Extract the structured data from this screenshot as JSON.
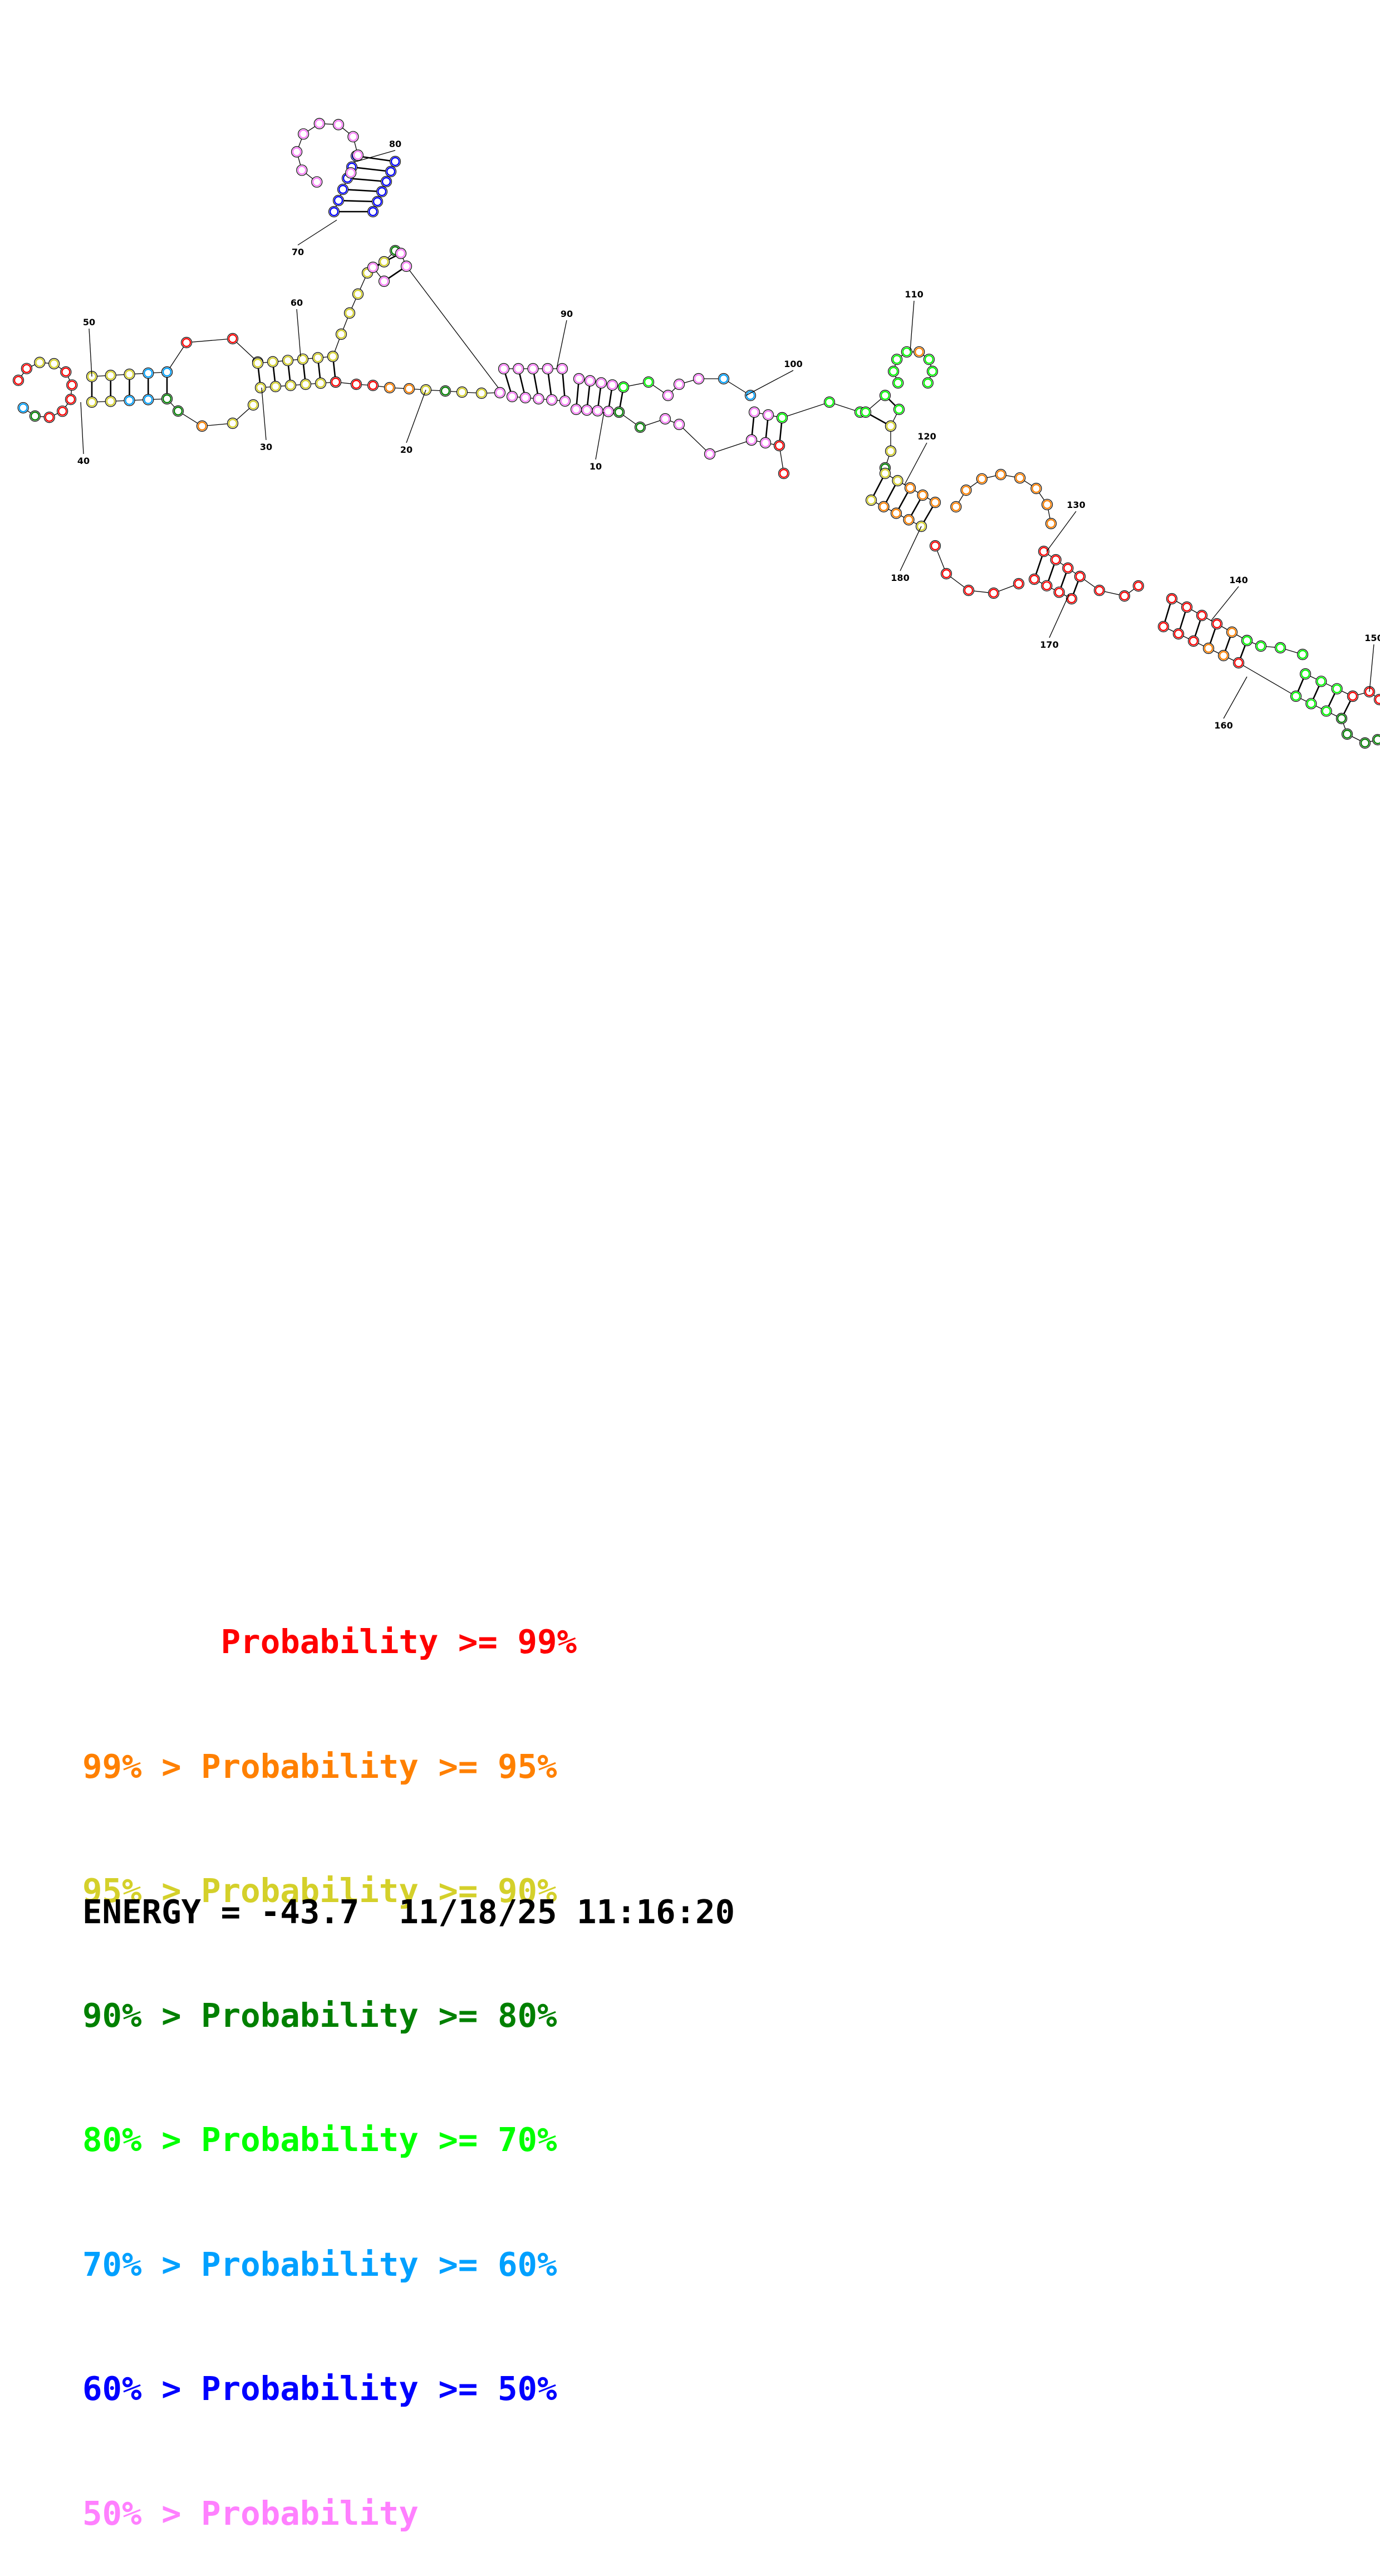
{
  "figure": {
    "colors": {
      "p99": "#ff0000",
      "p95": "#ff8000",
      "p90": "#d4d02a",
      "p80": "#008000",
      "p70": "#00ff00",
      "p60": "#00a0ff",
      "p50": "#0000ff",
      "low": "#ff80ff"
    }
  },
  "legend": {
    "rows": [
      {
        "prefix": "       ",
        "text": "Probability >= 99%",
        "color": "#ff0000"
      },
      {
        "prefix": "99% > ",
        "text": "Probability >= 95%",
        "color": "#ff8000"
      },
      {
        "prefix": "95% > ",
        "text": "Probability >= 90%",
        "color": "#d4d02a"
      },
      {
        "prefix": "90% > ",
        "text": "Probability >= 80%",
        "color": "#008000"
      },
      {
        "prefix": "80% > ",
        "text": "Probability >= 70%",
        "color": "#00ff00"
      },
      {
        "prefix": "70% > ",
        "text": "Probability >= 60%",
        "color": "#00a0ff"
      },
      {
        "prefix": "60% > ",
        "text": "Probability >= 50%",
        "color": "#0000ff"
      },
      {
        "prefix": "50% > ",
        "text": "Probability",
        "color": "#ff80ff"
      }
    ]
  },
  "footer": {
    "energy": "ENERGY = -43.7  11/18/25 11:16:20"
  },
  "position_labels": [
    "10",
    "20",
    "30",
    "40",
    "50",
    "60",
    "70",
    "80",
    "90",
    "100",
    "110",
    "120",
    "130",
    "140",
    "150",
    "160",
    "170",
    "180"
  ]
}
